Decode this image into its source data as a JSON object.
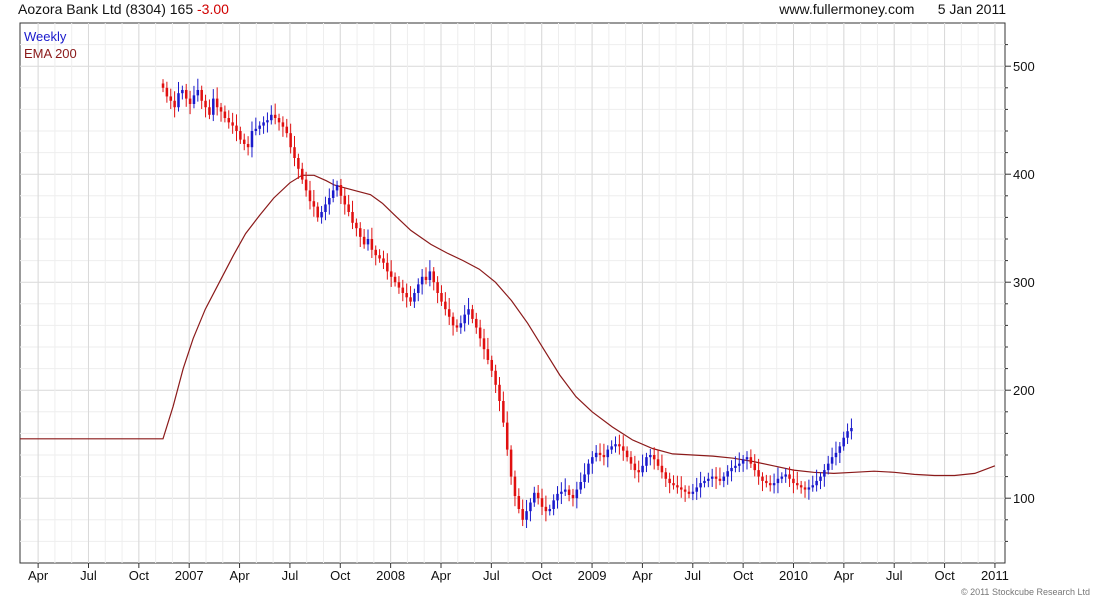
{
  "header": {
    "ticker": "Aozora Bank Ltd (8304)",
    "price": "165",
    "change": "-3.00",
    "site": "www.fullermoney.com",
    "date": "5 Jan 2011"
  },
  "legend": {
    "weekly": "Weekly",
    "ema": "EMA 200"
  },
  "copyright": "© 2011 Stockcube Research Ltd",
  "colors": {
    "up": "#1a1acc",
    "down": "#e01010",
    "ema": "#8b1a1a",
    "grid": "#d9d9d9",
    "grid_minor": "#eeeeee"
  },
  "chart_data": {
    "type": "candlestick",
    "title": "Aozora Bank Ltd (8304)",
    "ylim": [
      40,
      540
    ],
    "yticks": [
      100,
      200,
      300,
      400,
      500
    ],
    "x_range": [
      2006.16,
      2011.05
    ],
    "xticks": [
      {
        "label": "Apr",
        "x": 2006.25
      },
      {
        "label": "Jul",
        "x": 2006.5
      },
      {
        "label": "Oct",
        "x": 2006.75
      },
      {
        "label": "2007",
        "x": 2007.0
      },
      {
        "label": "Apr",
        "x": 2007.25
      },
      {
        "label": "Jul",
        "x": 2007.5
      },
      {
        "label": "Oct",
        "x": 2007.75
      },
      {
        "label": "2008",
        "x": 2008.0
      },
      {
        "label": "Apr",
        "x": 2008.25
      },
      {
        "label": "Jul",
        "x": 2008.5
      },
      {
        "label": "Oct",
        "x": 2008.75
      },
      {
        "label": "2009",
        "x": 2009.0
      },
      {
        "label": "Apr",
        "x": 2009.25
      },
      {
        "label": "Jul",
        "x": 2009.5
      },
      {
        "label": "Oct",
        "x": 2009.75
      },
      {
        "label": "2010",
        "x": 2010.0
      },
      {
        "label": "Apr",
        "x": 2010.25
      },
      {
        "label": "Jul",
        "x": 2010.5
      },
      {
        "label": "Oct",
        "x": 2010.75
      },
      {
        "label": "2011",
        "x": 2011.0
      }
    ],
    "grid": true,
    "price_series": {
      "name": "Weekly",
      "start": 2006.87,
      "step": 0.0192,
      "closes": [
        480,
        472,
        468,
        462,
        475,
        478,
        470,
        465,
        473,
        478,
        468,
        462,
        455,
        470,
        462,
        458,
        452,
        448,
        445,
        440,
        432,
        428,
        425,
        440,
        442,
        445,
        448,
        450,
        455,
        452,
        448,
        444,
        438,
        425,
        415,
        405,
        395,
        385,
        375,
        370,
        360,
        365,
        372,
        378,
        385,
        390,
        380,
        372,
        365,
        355,
        350,
        342,
        335,
        340,
        330,
        325,
        322,
        318,
        310,
        305,
        300,
        295,
        290,
        286,
        282,
        290,
        298,
        305,
        302,
        310,
        300,
        290,
        282,
        275,
        268,
        260,
        258,
        262,
        270,
        275,
        266,
        258,
        248,
        238,
        228,
        218,
        205,
        190,
        170,
        145,
        120,
        102,
        90,
        80,
        88,
        96,
        105,
        100,
        92,
        88,
        90,
        98,
        104,
        106,
        108,
        103,
        100,
        108,
        115,
        122,
        132,
        138,
        142,
        140,
        138,
        145,
        148,
        150,
        148,
        144,
        138,
        132,
        126,
        124,
        130,
        138,
        140,
        136,
        130,
        124,
        118,
        114,
        112,
        110,
        108,
        106,
        104,
        106,
        110,
        114,
        116,
        118,
        120,
        118,
        116,
        120,
        125,
        128,
        130,
        132,
        136,
        138,
        132,
        126,
        120,
        116,
        114,
        112,
        114,
        118,
        120,
        122,
        118,
        114,
        112,
        110,
        108,
        110,
        112,
        116,
        120,
        126,
        132,
        138,
        142,
        148,
        156,
        162,
        165
      ]
    },
    "ema_series": {
      "name": "EMA 200",
      "x": [
        2006.16,
        2006.87,
        2006.92,
        2006.97,
        2007.02,
        2007.08,
        2007.15,
        2007.22,
        2007.28,
        2007.35,
        2007.42,
        2007.5,
        2007.56,
        2007.62,
        2007.68,
        2007.72,
        2007.76,
        2007.82,
        2007.9,
        2007.96,
        2008.02,
        2008.1,
        2008.2,
        2008.28,
        2008.36,
        2008.44,
        2008.52,
        2008.6,
        2008.68,
        2008.76,
        2008.84,
        2008.92,
        2009.0,
        2009.1,
        2009.2,
        2009.3,
        2009.4,
        2009.5,
        2009.6,
        2009.7,
        2009.8,
        2009.9,
        2010.0,
        2010.1,
        2010.2,
        2010.3,
        2010.4,
        2010.5,
        2010.6,
        2010.7,
        2010.8,
        2010.9,
        2011.0
      ],
      "values": [
        155,
        155,
        185,
        220,
        248,
        275,
        300,
        325,
        345,
        362,
        378,
        392,
        399,
        399,
        394,
        390,
        388,
        385,
        381,
        373,
        362,
        348,
        335,
        327,
        320,
        312,
        300,
        283,
        262,
        238,
        214,
        194,
        180,
        166,
        154,
        146,
        141,
        140,
        139,
        137,
        134,
        130,
        126,
        124,
        123,
        124,
        125,
        124,
        122,
        121,
        121,
        123,
        130
      ]
    }
  }
}
